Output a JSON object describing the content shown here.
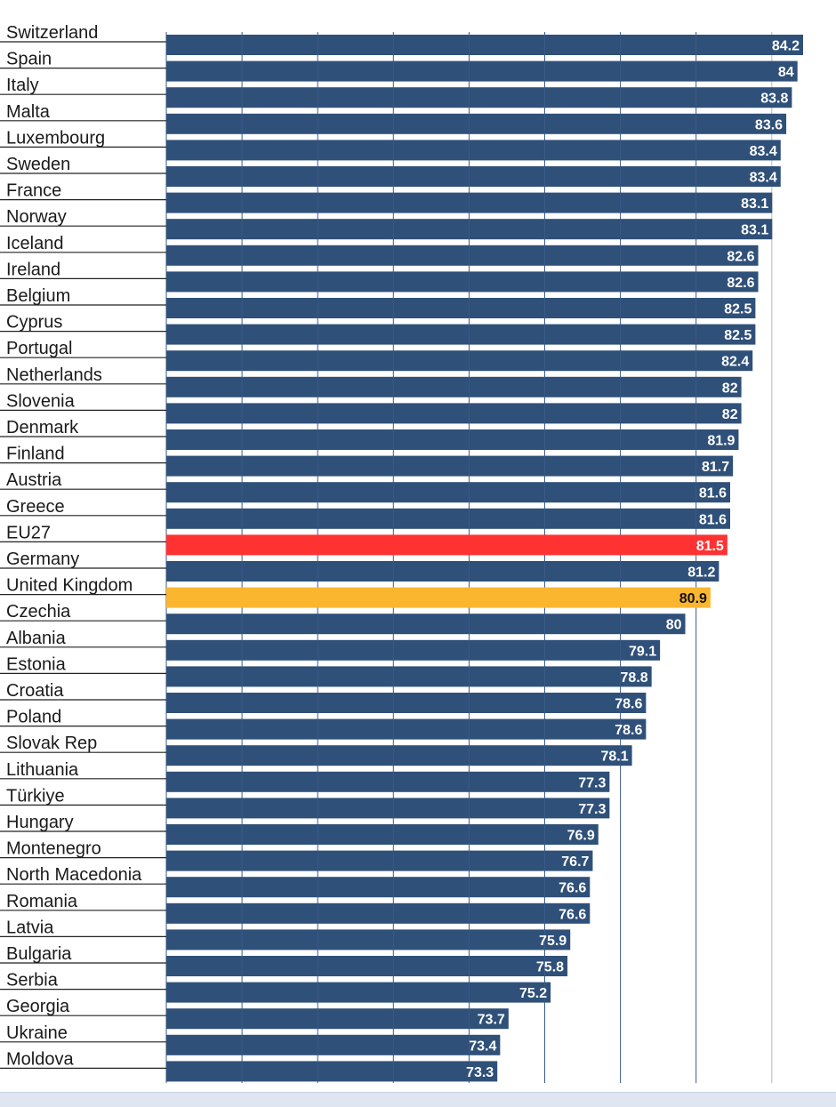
{
  "colors": {
    "default_bar": "#2f5079",
    "eu27_bar": "#ff3232",
    "uk_bar": "#fbb62f",
    "default_label": "#ffffff",
    "uk_label": "#111111",
    "gridline": "#3a5a86",
    "separator": "#222222",
    "axis_extension": "#bbbbbb"
  },
  "chart_data": {
    "type": "bar",
    "orientation": "horizontal",
    "title": "",
    "xlabel": "",
    "ylabel": "",
    "grid": true,
    "categories": [
      "Switzerland",
      "Spain",
      "Italy",
      "Malta",
      "Luxembourg",
      "Sweden",
      "France",
      "Norway",
      "Iceland",
      "Ireland",
      "Belgium",
      "Cyprus",
      "Portugal",
      "Netherlands",
      "Slovenia",
      "Denmark",
      "Finland",
      "Austria",
      "Greece",
      "EU27",
      "Germany",
      "United Kingdom",
      "Czechia",
      "Albania",
      "Estonia",
      "Croatia",
      "Poland",
      "Slovak Rep",
      "Lithuania",
      "Türkiye",
      "Hungary",
      "Montenegro",
      "North Macedonia",
      "Romania",
      "Latvia",
      "Bulgaria",
      "Serbia",
      "Georgia",
      "Ukraine",
      "Moldova"
    ],
    "values": [
      84.2,
      84,
      83.8,
      83.6,
      83.4,
      83.4,
      83.1,
      83.1,
      82.6,
      82.6,
      82.5,
      82.5,
      82.4,
      82,
      82,
      81.9,
      81.7,
      81.6,
      81.6,
      81.5,
      81.2,
      80.9,
      80,
      79.1,
      78.8,
      78.6,
      78.6,
      78.1,
      77.3,
      77.3,
      76.9,
      76.7,
      76.6,
      76.6,
      75.9,
      75.8,
      75.2,
      73.7,
      73.4,
      73.3
    ],
    "value_labels": [
      "84.2",
      "84",
      "83.8",
      "83.6",
      "83.4",
      "83.4",
      "83.1",
      "83.1",
      "82.6",
      "82.6",
      "82.5",
      "82.5",
      "82.4",
      "82",
      "82",
      "81.9",
      "81.7",
      "81.6",
      "81.6",
      "81.5",
      "81.2",
      "80.9",
      "80",
      "79.1",
      "78.8",
      "78.6",
      "78.6",
      "78.1",
      "77.3",
      "77.3",
      "76.9",
      "76.7",
      "76.6",
      "76.6",
      "75.9",
      "75.8",
      "75.2",
      "73.7",
      "73.4",
      "73.3"
    ],
    "highlights": {
      "EU27": "eu27_bar",
      "United Kingdom": "uk_bar"
    }
  }
}
